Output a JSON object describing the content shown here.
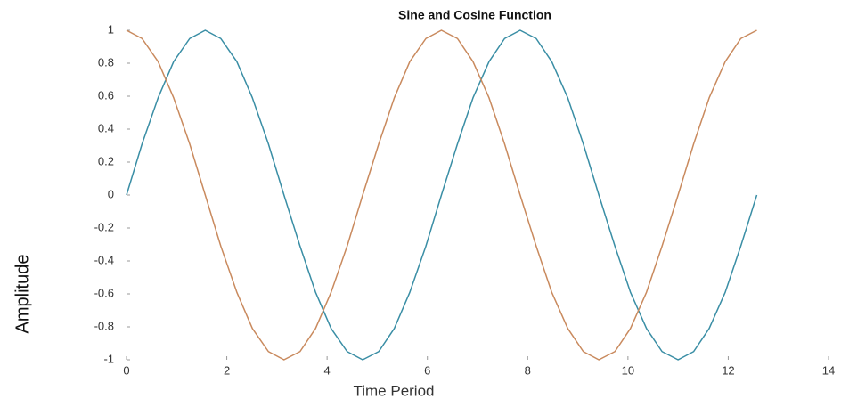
{
  "chart_data": {
    "type": "line",
    "title": "Sine and Cosine Function",
    "x_label": "Time Period",
    "y_label": "Amplitude",
    "x": [
      0,
      0.31,
      0.63,
      0.94,
      1.26,
      1.57,
      1.88,
      2.2,
      2.51,
      2.83,
      3.14,
      3.46,
      3.77,
      4.08,
      4.4,
      4.71,
      5.03,
      5.34,
      5.65,
      5.97,
      6.28,
      6.6,
      6.91,
      7.23,
      7.54,
      7.85,
      8.17,
      8.48,
      8.8,
      9.11,
      9.42,
      9.74,
      10.05,
      10.37,
      10.68,
      11.0,
      11.31,
      11.62,
      11.94,
      12.25,
      12.57
    ],
    "series": [
      {
        "color": "#3a8ea5",
        "values": [
          0,
          0.31,
          0.59,
          0.81,
          0.95,
          1,
          0.95,
          0.81,
          0.59,
          0.31,
          0,
          -0.31,
          -0.59,
          -0.81,
          -0.95,
          -1,
          -0.95,
          -0.81,
          -0.59,
          -0.31,
          0,
          0.31,
          0.59,
          0.81,
          0.95,
          1,
          0.95,
          0.81,
          0.59,
          0.31,
          0,
          -0.31,
          -0.59,
          -0.81,
          -0.95,
          -1,
          -0.95,
          -0.81,
          -0.59,
          -0.31,
          0
        ]
      },
      {
        "color": "#c98a5e",
        "values": [
          1,
          0.95,
          0.81,
          0.59,
          0.31,
          0,
          -0.31,
          -0.59,
          -0.81,
          -0.95,
          -1,
          -0.95,
          -0.81,
          -0.59,
          -0.31,
          0,
          0.31,
          0.59,
          0.81,
          0.95,
          1,
          0.95,
          0.81,
          0.59,
          0.31,
          0,
          -0.31,
          -0.59,
          -0.81,
          -0.95,
          -1,
          -0.95,
          -0.81,
          -0.59,
          -0.31,
          0,
          0.31,
          0.59,
          0.81,
          0.95,
          1
        ]
      }
    ],
    "xlim": [
      0,
      14
    ],
    "xticks": [
      0,
      2,
      4,
      6,
      8,
      10,
      12,
      14
    ],
    "ylim": [
      -1,
      1
    ],
    "yticks": [
      -1,
      -0.8,
      -0.6,
      -0.4,
      -0.2,
      0,
      0.2,
      0.4,
      0.6,
      0.8,
      1
    ]
  }
}
